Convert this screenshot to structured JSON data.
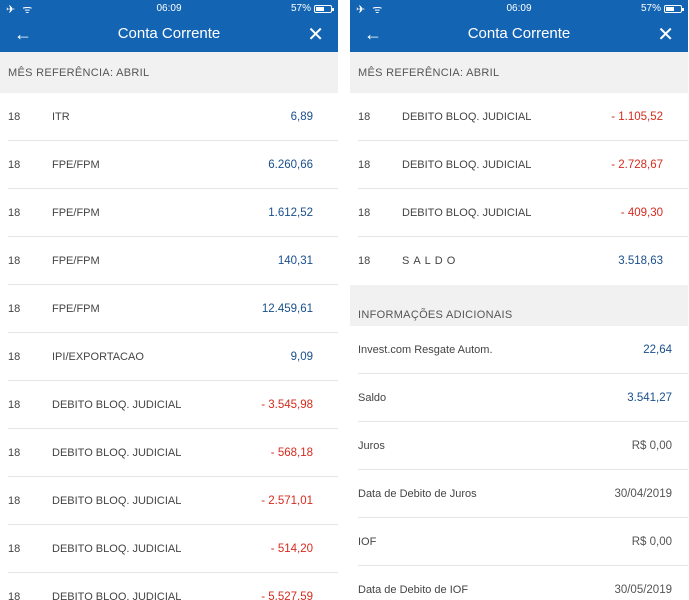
{
  "status": {
    "time": "06:09",
    "battery": "57%",
    "battery_level": 0.57,
    "left_icons": "✈ ᯤ"
  },
  "header": {
    "title": "Conta Corrente",
    "back_icon": "arrow-left-icon",
    "close_icon": "close-icon"
  },
  "left": {
    "section_title": "MÊS REFERÊNCIA: ABRIL",
    "rows": [
      {
        "day": "18",
        "desc": "ITR",
        "amount": "6,89",
        "type": "pos"
      },
      {
        "day": "18",
        "desc": "FPE/FPM",
        "amount": "6.260,66",
        "type": "pos"
      },
      {
        "day": "18",
        "desc": "FPE/FPM",
        "amount": "1.612,52",
        "type": "pos"
      },
      {
        "day": "18",
        "desc": "FPE/FPM",
        "amount": "140,31",
        "type": "pos"
      },
      {
        "day": "18",
        "desc": "FPE/FPM",
        "amount": "12.459,61",
        "type": "pos"
      },
      {
        "day": "18",
        "desc": "IPI/EXPORTACAO",
        "amount": "9,09",
        "type": "pos"
      },
      {
        "day": "18",
        "desc": "DEBITO BLOQ. JUDICIAL",
        "amount": "- 3.545,98",
        "type": "neg"
      },
      {
        "day": "18",
        "desc": "DEBITO BLOQ. JUDICIAL",
        "amount": "- 568,18",
        "type": "neg"
      },
      {
        "day": "18",
        "desc": "DEBITO BLOQ. JUDICIAL",
        "amount": "- 2.571,01",
        "type": "neg"
      },
      {
        "day": "18",
        "desc": "DEBITO BLOQ. JUDICIAL",
        "amount": "- 514,20",
        "type": "neg"
      },
      {
        "day": "18",
        "desc": "DEBITO BLOQ. JUDICIAL",
        "amount": "- 5.527,59",
        "type": "neg"
      }
    ]
  },
  "right": {
    "section_title": "MÊS REFERÊNCIA: ABRIL",
    "rows": [
      {
        "day": "18",
        "desc": "DEBITO BLOQ. JUDICIAL",
        "amount": "- 1.105,52",
        "type": "neg"
      },
      {
        "day": "18",
        "desc": "DEBITO BLOQ. JUDICIAL",
        "amount": "- 2.728,67",
        "type": "neg"
      },
      {
        "day": "18",
        "desc": "DEBITO BLOQ. JUDICIAL",
        "amount": "- 409,30",
        "type": "neg"
      },
      {
        "day": "18",
        "desc": "SALDO",
        "amount": "3.518,63",
        "type": "pos"
      }
    ],
    "info_title": "INFORMAÇÕES ADICIONAIS",
    "info_rows": [
      {
        "label": "Invest.com Resgate Autom.",
        "value": "22,64",
        "type": "pos"
      },
      {
        "label": "Saldo",
        "value": "3.541,27",
        "type": "pos"
      },
      {
        "label": "Juros",
        "value": "R$ 0,00",
        "type": "neutral"
      },
      {
        "label": "Data de Debito de Juros",
        "value": "30/04/2019",
        "type": "neutral"
      },
      {
        "label": "IOF",
        "value": "R$ 0,00",
        "type": "neutral"
      },
      {
        "label": "Data de Debito de IOF",
        "value": "30/05/2019",
        "type": "neutral"
      }
    ]
  },
  "colors": {
    "brand": "#1464b4",
    "positive": "#1a4f8c",
    "negative": "#d52b1e"
  }
}
